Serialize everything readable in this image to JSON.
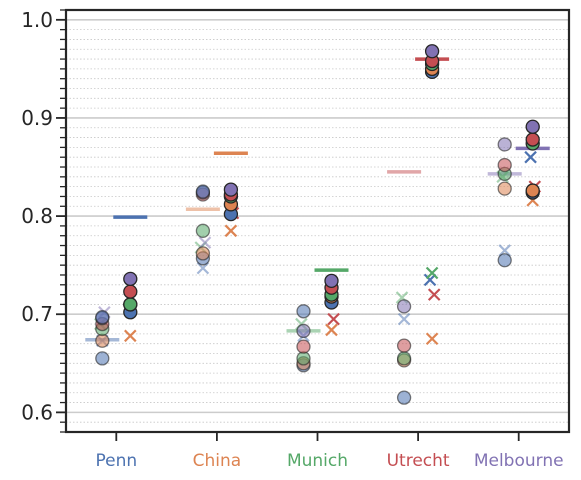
{
  "chart_data": {
    "type": "scatter",
    "title": "",
    "xlabel": "",
    "ylabel": "",
    "ylim": [
      0.58,
      1.01
    ],
    "grid": {
      "major": true,
      "minor": true,
      "axis": "y"
    },
    "y_ticks": [
      {
        "value": 0.6,
        "label": "0.6"
      },
      {
        "value": 0.7,
        "label": "0.7"
      },
      {
        "value": 0.8,
        "label": "0.8"
      },
      {
        "value": 0.9,
        "label": "0.9"
      },
      {
        "value": 1.0,
        "label": "1.0"
      }
    ],
    "categories": [
      {
        "label": "Penn",
        "color": "#4c72b0"
      },
      {
        "label": "China",
        "color": "#dd8452"
      },
      {
        "label": "Munich",
        "color": "#55a868"
      },
      {
        "label": "Utrecht",
        "color": "#c44e52"
      },
      {
        "label": "Melbourne",
        "color": "#8172b3"
      }
    ],
    "series_colors": [
      "#4c72b0",
      "#dd8452",
      "#55a868",
      "#c44e52",
      "#8172b3"
    ],
    "groups": [
      {
        "category": "Penn",
        "light": {
          "line": 0.674,
          "line_color_index": 0,
          "circles": [
            0.655,
            0.673,
            0.685,
            0.69,
            0.696,
            0.697
          ],
          "crosses": [
            0.673,
            0.69,
            0.702
          ]
        },
        "dark": {
          "line": 0.799,
          "line_color_index": 0,
          "circles": [
            0.702,
            0.71,
            0.71,
            0.723,
            0.736
          ],
          "crosses": [
            0.678
          ]
        }
      },
      {
        "category": "China",
        "light": {
          "line": 0.807,
          "line_color_index": 1,
          "circles": [
            0.757,
            0.762,
            0.785,
            0.822,
            0.824,
            0.825
          ],
          "crosses": [
            0.747,
            0.768,
            0.773
          ]
        },
        "dark": {
          "line": 0.864,
          "line_color_index": 1,
          "circles": [
            0.802,
            0.812,
            0.82,
            0.822,
            0.827
          ],
          "crosses": [
            0.785,
            0.803
          ]
        }
      },
      {
        "category": "Munich",
        "light": {
          "line": 0.683,
          "line_color_index": 2,
          "circles": [
            0.648,
            0.65,
            0.655,
            0.667,
            0.683,
            0.703
          ],
          "crosses": [
            0.678,
            0.69
          ]
        },
        "dark": {
          "line": 0.745,
          "line_color_index": 2,
          "circles": [
            0.712,
            0.718,
            0.72,
            0.727,
            0.734
          ],
          "crosses": [
            0.684,
            0.695
          ]
        }
      },
      {
        "category": "Utrecht",
        "light": {
          "line": 0.845,
          "line_color_index": 3,
          "circles": [
            0.615,
            0.653,
            0.655,
            0.668,
            0.708
          ],
          "crosses": [
            0.695,
            0.717
          ]
        },
        "dark": {
          "line": 0.96,
          "line_color_index": 3,
          "circles": [
            0.947,
            0.95,
            0.955,
            0.958,
            0.968
          ],
          "crosses": [
            0.675,
            0.72,
            0.735,
            0.742
          ]
        }
      },
      {
        "category": "Melbourne",
        "light": {
          "line": 0.843,
          "line_color_index": 4,
          "circles": [
            0.755,
            0.828,
            0.843,
            0.852,
            0.873
          ],
          "crosses": [
            0.765,
            0.84
          ]
        },
        "dark": {
          "line": 0.869,
          "line_color_index": 4,
          "circles": [
            0.824,
            0.826,
            0.874,
            0.878,
            0.891
          ],
          "crosses": [
            0.816,
            0.83,
            0.86
          ]
        }
      }
    ]
  }
}
